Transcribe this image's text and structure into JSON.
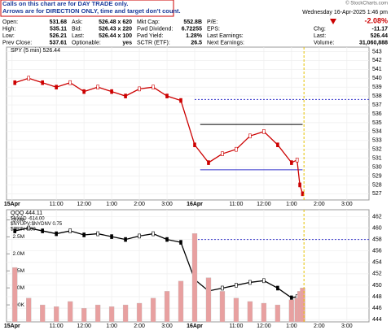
{
  "notice": [
    "Calls on this chart are for DAY TRADE only.",
    "Arrows are for DIRECTION ONLY, time and target don't count."
  ],
  "credit": "© StockCharts.com",
  "quote": {
    "columns": [
      [
        [
          "Open:",
          "531.68"
        ],
        [
          "High:",
          "535.11"
        ],
        [
          "Low:",
          "526.21"
        ],
        [
          "Prev Close:",
          "537.61"
        ]
      ],
      [
        [
          "Ask:",
          "526.48 x 620"
        ],
        [
          "Bid:",
          "526.43 x 220"
        ],
        [
          "Last:",
          "526.44 x 100"
        ],
        [
          "Optionable:",
          "yes"
        ]
      ],
      [
        [
          "Mkt Cap:",
          "552.8B"
        ],
        [
          "Fwd Dividend:",
          "6.72255"
        ],
        [
          "Fwd Yield:",
          "1.28%"
        ],
        [
          "SCTR (ETF):",
          "26.5"
        ]
      ],
      [
        [
          "P/E:"
        ],
        [
          "EPS:"
        ],
        [
          "Last Earnings:"
        ],
        [
          "Next Earnings:"
        ]
      ]
    ],
    "date": "Wednesday 16-Apr-2025 1:46 pm",
    "change_pct": "-2.08%",
    "right": [
      [
        "Chg:",
        "-11.17"
      ],
      [
        "Last:",
        "526.44"
      ],
      [
        "Volume:",
        "31,060,888"
      ]
    ]
  },
  "chart_data": [
    {
      "type": "line",
      "title": "SPY (5 min) 526.44",
      "x": [
        0,
        0.5,
        1,
        1.5,
        2,
        2.5,
        3,
        3.5,
        4,
        4.5,
        5,
        5.5,
        6,
        6.5,
        7,
        7.5,
        8,
        8.5,
        9,
        9.5,
        10,
        10.2,
        10.3,
        10.4
      ],
      "series": [
        {
          "name": "SPY",
          "color": "#cc0000",
          "values": [
            539.5,
            540,
            539.5,
            539,
            539.5,
            538.5,
            539,
            538.5,
            538,
            538.8,
            539,
            538,
            537.5,
            532.5,
            530.5,
            531.5,
            532,
            533.5,
            534,
            532.5,
            530.5,
            530.8,
            528,
            527
          ]
        }
      ],
      "levels": [
        {
          "value": 537.61,
          "color": "#3333cc",
          "style": "dotted"
        },
        {
          "value": 534.8,
          "color": "#000000",
          "style": "solid"
        },
        {
          "value": 529.7,
          "color": "#3333cc",
          "style": "solid"
        }
      ],
      "xlim": [
        -0.3,
        12.8
      ],
      "ylim": [
        526.3,
        543.5
      ],
      "yticks": [
        527,
        528,
        529,
        530,
        531,
        532,
        533,
        534,
        535,
        536,
        537,
        538,
        539,
        540,
        541,
        542,
        543
      ],
      "xticks": [
        {
          "value": -0.1,
          "label": "15Apr"
        },
        {
          "value": 1.5,
          "label": "11:00"
        },
        {
          "value": 2.5,
          "label": "12:00"
        },
        {
          "value": 3.5,
          "label": "1:00"
        },
        {
          "value": 4.5,
          "label": "2:00"
        },
        {
          "value": 5.5,
          "label": "3:00"
        },
        {
          "value": 6.5,
          "label": "16Apr"
        },
        {
          "value": 8,
          "label": "11:00"
        },
        {
          "value": 9,
          "label": "12:00"
        },
        {
          "value": 10,
          "label": "1:00"
        },
        {
          "value": 11,
          "label": "2:00"
        },
        {
          "value": 12,
          "label": "3:00"
        }
      ],
      "grid": true
    },
    {
      "type": "line",
      "title": "QQQ 444.11",
      "notes": [
        "$NYAD -614.00",
        "$NYUPV:$NYDNV 0.75",
        "$TRIN 0.89"
      ],
      "x": [
        0,
        0.5,
        1,
        1.5,
        2,
        2.5,
        3,
        3.5,
        4,
        4.5,
        5,
        5.5,
        6,
        6.5,
        7,
        7.5,
        8,
        8.5,
        9,
        9.5,
        10,
        10.2,
        10.3,
        10.4
      ],
      "series": [
        {
          "name": "QQQ",
          "color": "#000000",
          "values": [
            459.5,
            460,
            459.5,
            459,
            459.5,
            458.8,
            459,
            458.5,
            458,
            458.6,
            459,
            458,
            457.5,
            451,
            449,
            449.5,
            450,
            450.5,
            450.8,
            449.5,
            447.8,
            448,
            446,
            444.1
          ]
        },
        {
          "name": "Volume",
          "color": "#e8a0a0",
          "axis": "y2",
          "bars": true,
          "values": [
            1600000,
            700000,
            500000,
            450000,
            600000,
            400000,
            500000,
            450000,
            500000,
            550000,
            700000,
            900000,
            1200000,
            2600000,
            1300000,
            900000,
            700000,
            600000,
            550000,
            500000,
            650000,
            700000,
            900000,
            1000000
          ]
        }
      ],
      "xlim": [
        -0.3,
        12.8
      ],
      "ylim": [
        443.6,
        463.2
      ],
      "yticks": [
        444,
        446,
        448,
        450,
        452,
        454,
        456,
        458,
        460,
        462
      ],
      "y2lim": [
        0,
        3300000
      ],
      "y2ticks": [
        {
          "value": 500000,
          "label": "500K"
        },
        {
          "value": 1000000,
          "label": "1.0M"
        },
        {
          "value": 1500000,
          "label": "1.5M"
        },
        {
          "value": 2000000,
          "label": "2.0M"
        },
        {
          "value": 2500000,
          "label": "2.5M"
        },
        {
          "value": 3000000,
          "label": "3.0M"
        }
      ],
      "levels": [
        {
          "value": 458,
          "color": "#3333cc",
          "style": "dotted"
        }
      ],
      "xticks": [
        {
          "value": -0.1,
          "label": "15Apr"
        },
        {
          "value": 1.5,
          "label": "11:00"
        },
        {
          "value": 2.5,
          "label": "12:00"
        },
        {
          "value": 3.5,
          "label": "1:00"
        },
        {
          "value": 4.5,
          "label": "2:00"
        },
        {
          "value": 5.5,
          "label": "3:00"
        },
        {
          "value": 6.5,
          "label": "16Apr"
        },
        {
          "value": 8,
          "label": "11:00"
        },
        {
          "value": 9,
          "label": "12:00"
        },
        {
          "value": 10,
          "label": "1:00"
        },
        {
          "value": 11,
          "label": "2:00"
        },
        {
          "value": 12,
          "label": "3:00"
        }
      ],
      "grid": true
    }
  ]
}
